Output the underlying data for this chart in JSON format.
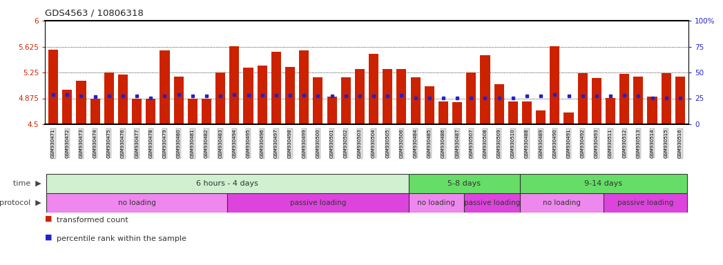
{
  "title": "GDS4563 / 10806318",
  "samples": [
    "GSM930471",
    "GSM930472",
    "GSM930473",
    "GSM930474",
    "GSM930475",
    "GSM930476",
    "GSM930477",
    "GSM930478",
    "GSM930479",
    "GSM930480",
    "GSM930481",
    "GSM930482",
    "GSM930483",
    "GSM930494",
    "GSM930495",
    "GSM930496",
    "GSM930497",
    "GSM930498",
    "GSM930499",
    "GSM930500",
    "GSM930501",
    "GSM930502",
    "GSM930503",
    "GSM930504",
    "GSM930505",
    "GSM930506",
    "GSM930484",
    "GSM930485",
    "GSM930486",
    "GSM930487",
    "GSM930507",
    "GSM930508",
    "GSM930509",
    "GSM930510",
    "GSM930488",
    "GSM930489",
    "GSM930490",
    "GSM930491",
    "GSM930492",
    "GSM930493",
    "GSM930511",
    "GSM930512",
    "GSM930513",
    "GSM930514",
    "GSM930515",
    "GSM930516"
  ],
  "bar_values": [
    5.58,
    5.0,
    5.13,
    4.87,
    5.25,
    5.22,
    4.87,
    4.87,
    5.57,
    5.19,
    4.87,
    4.87,
    5.25,
    5.63,
    5.32,
    5.35,
    5.55,
    5.33,
    5.57,
    5.18,
    4.9,
    5.18,
    5.3,
    5.52,
    5.3,
    5.3,
    5.18,
    5.05,
    4.83,
    4.82,
    5.25,
    5.5,
    5.08,
    4.83,
    4.83,
    4.7,
    5.63,
    4.67,
    5.24,
    5.17,
    4.88,
    5.23,
    5.19,
    4.9,
    5.24,
    5.19
  ],
  "percentile_values": [
    4.93,
    4.93,
    4.91,
    4.9,
    4.91,
    4.91,
    4.91,
    4.88,
    4.91,
    4.93,
    4.91,
    4.91,
    4.91,
    4.93,
    4.92,
    4.92,
    4.92,
    4.92,
    4.92,
    4.91,
    4.91,
    4.91,
    4.91,
    4.91,
    4.91,
    4.92,
    4.88,
    4.88,
    4.88,
    4.88,
    4.88,
    4.88,
    4.88,
    4.88,
    4.91,
    4.91,
    4.93,
    4.91,
    4.91,
    4.91,
    4.91,
    4.92,
    4.91,
    4.88,
    4.88,
    4.88
  ],
  "ylim_left": [
    4.5,
    6.0
  ],
  "yticks_left": [
    4.5,
    4.875,
    5.25,
    5.625,
    6.0
  ],
  "ytick_labels_left": [
    "4.5",
    "4.875",
    "5.25",
    "5.625",
    "6"
  ],
  "ylim_right": [
    0,
    100
  ],
  "yticks_right": [
    0,
    25,
    50,
    75,
    100
  ],
  "ytick_labels_right": [
    "0",
    "25",
    "50",
    "75",
    "100%"
  ],
  "bar_color": "#cc2200",
  "marker_color": "#2222cc",
  "bar_width": 0.7,
  "hgrid_values": [
    4.875,
    5.25,
    5.625
  ],
  "time_groups": [
    {
      "label": "6 hours - 4 days",
      "start": 0,
      "end": 25,
      "color": "#d0f0d0"
    },
    {
      "label": "5-8 days",
      "start": 26,
      "end": 33,
      "color": "#66dd66"
    },
    {
      "label": "9-14 days",
      "start": 34,
      "end": 45,
      "color": "#66dd66"
    }
  ],
  "protocol_groups": [
    {
      "label": "no loading",
      "start": 0,
      "end": 12,
      "color": "#ee88ee"
    },
    {
      "label": "passive loading",
      "start": 13,
      "end": 25,
      "color": "#dd44dd"
    },
    {
      "label": "no loading",
      "start": 26,
      "end": 29,
      "color": "#ee88ee"
    },
    {
      "label": "passive loading",
      "start": 30,
      "end": 33,
      "color": "#dd44dd"
    },
    {
      "label": "no loading",
      "start": 34,
      "end": 39,
      "color": "#ee88ee"
    },
    {
      "label": "passive loading",
      "start": 40,
      "end": 45,
      "color": "#dd44dd"
    }
  ],
  "bg_color": "#ffffff",
  "left_axis_color": "#cc2200",
  "right_axis_color": "#2222cc",
  "label_color": "#333333",
  "grid_color": "#000000"
}
